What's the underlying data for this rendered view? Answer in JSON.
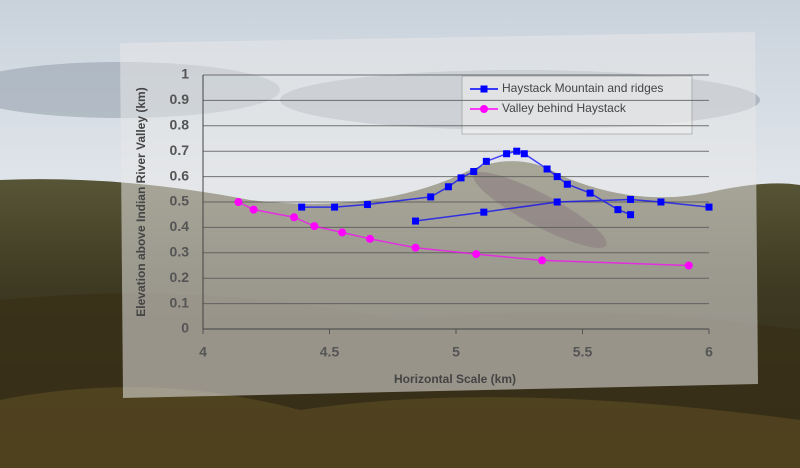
{
  "chart_data": {
    "type": "scatter",
    "xlabel": "Horizontal Scale (km)",
    "ylabel": "Elevation above Indian River Valley (km)",
    "xlim": [
      4,
      6
    ],
    "xticks": [
      4,
      4.5,
      5,
      5.5,
      6
    ],
    "ylim": [
      0,
      1
    ],
    "yticks": [
      0,
      0.1,
      0.2,
      0.3,
      0.4,
      0.5,
      0.6,
      0.7,
      0.8,
      0.9,
      1
    ],
    "grid": true,
    "legend": "upper right",
    "series": [
      {
        "name": "Haystack Mountain and ridges",
        "color": "#0000ff",
        "marker": "square",
        "x": [
          4.39,
          4.52,
          4.65,
          4.9,
          4.97,
          5.02,
          5.07,
          5.12,
          5.2,
          5.24,
          5.27,
          5.36,
          5.4,
          5.44,
          5.53,
          5.64,
          5.69,
          null,
          4.84,
          5.11,
          5.4,
          5.69,
          5.81,
          6.0
        ],
        "values": [
          0.48,
          0.48,
          0.49,
          0.52,
          0.56,
          0.595,
          0.62,
          0.66,
          0.69,
          0.7,
          0.69,
          0.63,
          0.6,
          0.57,
          0.535,
          0.47,
          0.45,
          null,
          0.425,
          0.46,
          0.5,
          0.51,
          0.5,
          0.48
        ]
      },
      {
        "name": "Valley behind Haystack",
        "color": "#ff00ff",
        "marker": "circle",
        "x": [
          4.14,
          4.2,
          4.36,
          4.44,
          4.55,
          4.66,
          4.84,
          5.08,
          5.34,
          5.92
        ],
        "values": [
          0.5,
          0.47,
          0.44,
          0.405,
          0.38,
          0.355,
          0.32,
          0.295,
          0.27,
          0.25
        ]
      }
    ]
  }
}
